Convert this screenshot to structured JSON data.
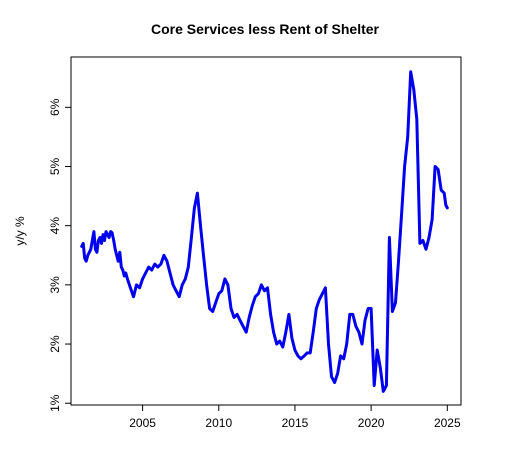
{
  "chart_data": {
    "type": "line",
    "title": "Core Services less Rent of Shelter",
    "xlabel": "",
    "ylabel": "y/y %",
    "xlim": [
      2000.3,
      2025.9
    ],
    "ylim": [
      0.97,
      6.85
    ],
    "x_ticks": [
      2005,
      2010,
      2015,
      2020,
      2025
    ],
    "x_tick_labels": [
      "2005",
      "2010",
      "2015",
      "2020",
      "2025"
    ],
    "y_ticks": [
      1,
      2,
      3,
      4,
      5,
      6
    ],
    "y_tick_labels": [
      "1%",
      "2%",
      "3%",
      "4%",
      "5%",
      "6%"
    ],
    "grid": false,
    "line_color": "#0000EE",
    "series": [
      {
        "x": [
          2001.0,
          2001.1,
          2001.2,
          2001.3,
          2001.4,
          2001.5,
          2001.6,
          2001.7,
          2001.8,
          2001.9,
          2002.0,
          2002.1,
          2002.2,
          2002.3,
          2002.4,
          2002.5,
          2002.6,
          2002.7,
          2002.8,
          2002.9,
          2003.0,
          2003.1,
          2003.2,
          2003.3,
          2003.4,
          2003.5,
          2003.6,
          2003.7,
          2003.8,
          2003.9,
          2004.0,
          2004.2,
          2004.4,
          2004.6,
          2004.8,
          2005.0,
          2005.2,
          2005.4,
          2005.6,
          2005.8,
          2006.0,
          2006.2,
          2006.4,
          2006.6,
          2006.8,
          2007.0,
          2007.2,
          2007.4,
          2007.6,
          2007.8,
          2008.0,
          2008.2,
          2008.4,
          2008.6,
          2008.8,
          2009.0,
          2009.2,
          2009.4,
          2009.6,
          2009.8,
          2010.0,
          2010.2,
          2010.4,
          2010.6,
          2010.8,
          2011.0,
          2011.2,
          2011.4,
          2011.6,
          2011.8,
          2012.0,
          2012.2,
          2012.4,
          2012.6,
          2012.8,
          2013.0,
          2013.2,
          2013.4,
          2013.6,
          2013.8,
          2014.0,
          2014.2,
          2014.4,
          2014.6,
          2014.8,
          2015.0,
          2015.2,
          2015.4,
          2015.6,
          2015.8,
          2016.0,
          2016.2,
          2016.4,
          2016.6,
          2016.8,
          2017.0,
          2017.2,
          2017.4,
          2017.6,
          2017.8,
          2018.0,
          2018.2,
          2018.4,
          2018.6,
          2018.8,
          2019.0,
          2019.2,
          2019.4,
          2019.6,
          2019.8,
          2020.0,
          2020.2,
          2020.4,
          2020.6,
          2020.8,
          2021.0,
          2021.2,
          2021.4,
          2021.6,
          2021.8,
          2022.0,
          2022.2,
          2022.4,
          2022.6,
          2022.8,
          2023.0,
          2023.2,
          2023.4,
          2023.6,
          2023.8,
          2024.0,
          2024.2,
          2024.4,
          2024.6,
          2024.8,
          2024.9,
          2025.0
        ],
        "y": [
          3.65,
          3.7,
          3.45,
          3.4,
          3.5,
          3.55,
          3.6,
          3.75,
          3.9,
          3.6,
          3.55,
          3.75,
          3.8,
          3.7,
          3.85,
          3.75,
          3.9,
          3.85,
          3.8,
          3.9,
          3.88,
          3.75,
          3.6,
          3.5,
          3.4,
          3.55,
          3.3,
          3.25,
          3.15,
          3.2,
          3.1,
          2.95,
          2.8,
          3.0,
          2.95,
          3.1,
          3.2,
          3.3,
          3.25,
          3.35,
          3.3,
          3.35,
          3.5,
          3.4,
          3.2,
          3.0,
          2.9,
          2.8,
          3.0,
          3.1,
          3.3,
          3.8,
          4.3,
          4.55,
          4.0,
          3.5,
          3.0,
          2.6,
          2.55,
          2.7,
          2.85,
          2.9,
          3.1,
          3.0,
          2.6,
          2.45,
          2.5,
          2.4,
          2.3,
          2.2,
          2.45,
          2.65,
          2.8,
          2.85,
          3.0,
          2.9,
          2.95,
          2.5,
          2.2,
          2.0,
          2.05,
          1.95,
          2.2,
          2.5,
          2.1,
          1.9,
          1.8,
          1.75,
          1.8,
          1.85,
          1.85,
          2.2,
          2.6,
          2.75,
          2.85,
          2.95,
          2.0,
          1.45,
          1.35,
          1.5,
          1.8,
          1.75,
          2.0,
          2.5,
          2.5,
          2.3,
          2.2,
          2.0,
          2.4,
          2.6,
          2.6,
          1.3,
          1.9,
          1.6,
          1.2,
          1.3,
          3.8,
          2.55,
          2.7,
          3.4,
          4.2,
          5.0,
          5.5,
          6.6,
          6.3,
          5.8,
          3.7,
          3.75,
          3.6,
          3.8,
          4.1,
          5.0,
          4.95,
          4.6,
          4.55,
          4.35,
          4.3
        ]
      }
    ]
  }
}
